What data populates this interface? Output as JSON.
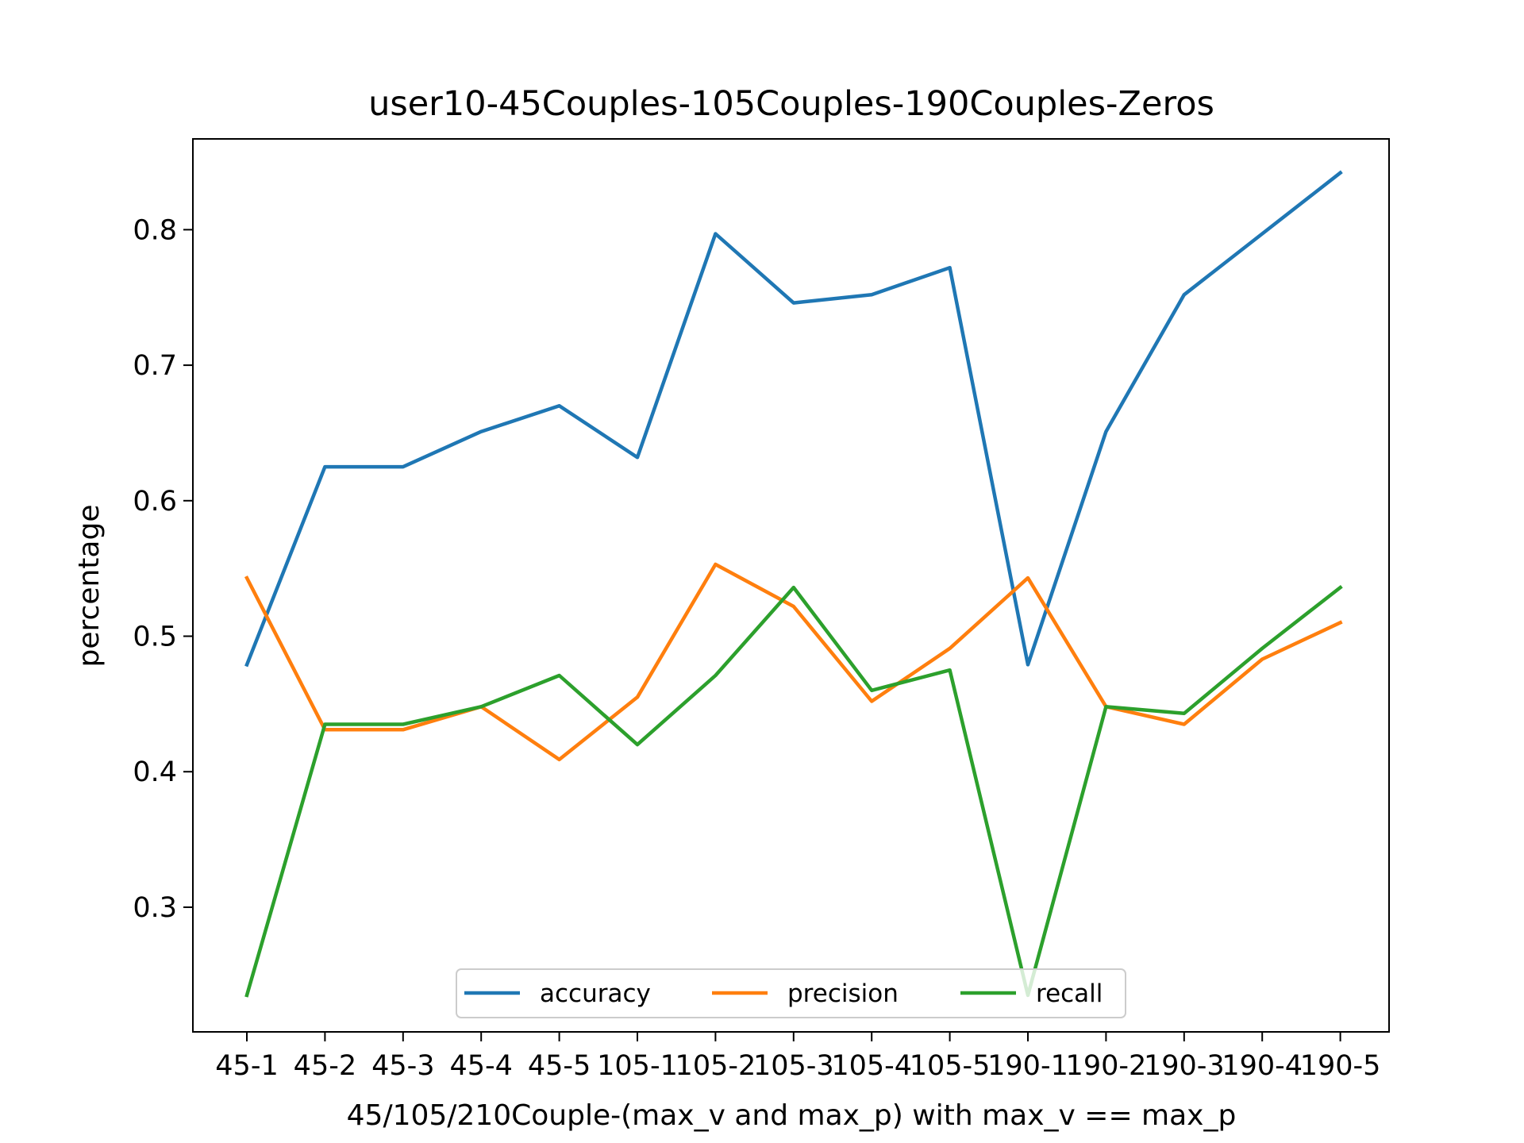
{
  "chart_data": {
    "type": "line",
    "title": "user10-45Couples-105Couples-190Couples-Zeros",
    "xlabel": "45/105/210Couple-(max_v and max_p) with max_v == max_p",
    "ylabel": "percentage",
    "categories": [
      "45-1",
      "45-2",
      "45-3",
      "45-4",
      "45-5",
      "105-1",
      "105-2",
      "105-3",
      "105-4",
      "105-5",
      "190-1",
      "190-2",
      "190-3",
      "190-4",
      "190-5"
    ],
    "y_ticks": [
      0.3,
      0.4,
      0.5,
      0.6,
      0.7,
      0.8
    ],
    "ylim": [
      0.208,
      0.867
    ],
    "grid": false,
    "legend": {
      "position": "lower-center",
      "columns": 3
    },
    "series": [
      {
        "name": "accuracy",
        "color": "#1f77b4",
        "values": [
          0.479,
          0.625,
          0.625,
          0.651,
          0.67,
          0.632,
          0.797,
          0.746,
          0.752,
          0.772,
          0.479,
          0.651,
          0.752,
          0.797,
          0.842
        ]
      },
      {
        "name": "precision",
        "color": "#ff7f0e",
        "values": [
          0.543,
          0.431,
          0.431,
          0.448,
          0.409,
          0.455,
          0.553,
          0.522,
          0.452,
          0.491,
          0.543,
          0.448,
          0.435,
          0.483,
          0.51
        ]
      },
      {
        "name": "recall",
        "color": "#2ca02c",
        "values": [
          0.235,
          0.435,
          0.435,
          0.448,
          0.471,
          0.42,
          0.471,
          0.536,
          0.46,
          0.475,
          0.235,
          0.448,
          0.443,
          0.491,
          0.536
        ]
      }
    ]
  }
}
